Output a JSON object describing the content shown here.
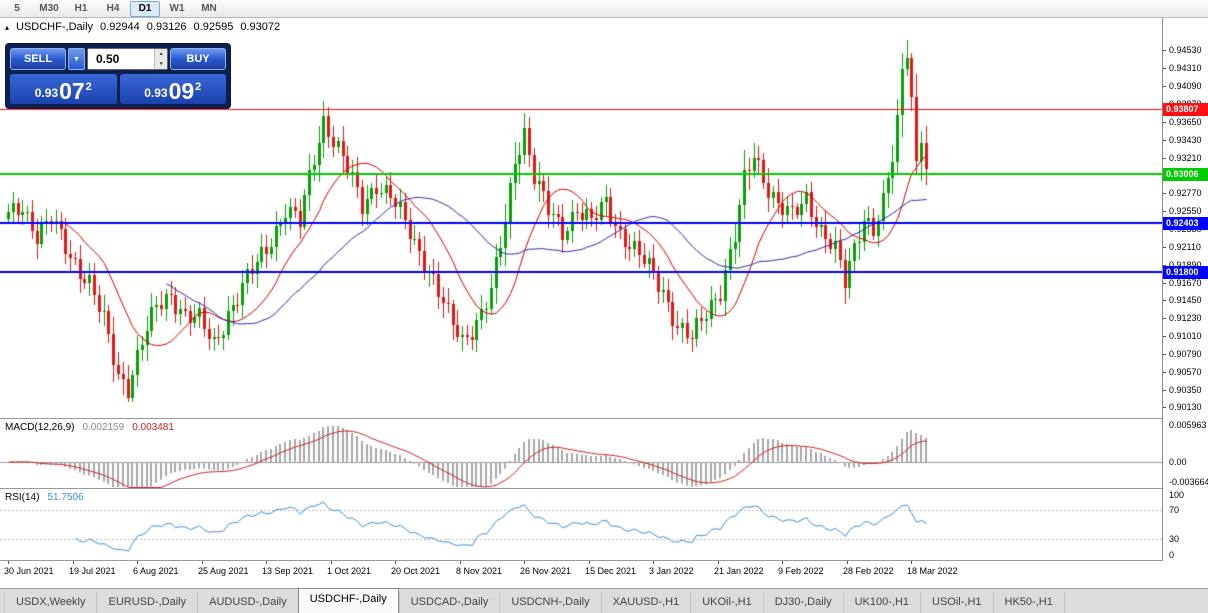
{
  "toolbar": {
    "timeframes": [
      "5",
      "M30",
      "H1",
      "H4",
      "D1",
      "W1",
      "MN"
    ],
    "active_timeframe": "D1"
  },
  "chart": {
    "collapse_icon": "▴",
    "title": "USDCHF-,Daily",
    "ohlc": {
      "open": "0.92944",
      "high": "0.93126",
      "low": "0.92595",
      "close": "0.93072"
    }
  },
  "trade": {
    "sell_label": "SELL",
    "buy_label": "BUY",
    "dropdown_icon": "▼",
    "spin_up_icon": "▲",
    "spin_down_icon": "▼",
    "lot_size": "0.50",
    "sell_price": {
      "major": "0.93",
      "pips": "07",
      "pipette": "2"
    },
    "buy_price": {
      "major": "0.93",
      "pips": "09",
      "pipette": "2"
    }
  },
  "chart_data": {
    "type": "candlestick",
    "symbol": "USDCHF-,Daily",
    "price_axis": {
      "min": 0.9,
      "max": 0.9493,
      "ticks": [
        "0.94530",
        "0.94310",
        "0.94090",
        "0.93870",
        "0.93650",
        "0.93430",
        "0.93210",
        "0.92990",
        "0.92770",
        "0.92550",
        "0.92330",
        "0.92110",
        "0.91890",
        "0.91670",
        "0.91450",
        "0.91230",
        "0.91010",
        "0.90790",
        "0.90570",
        "0.90350",
        "0.90130"
      ]
    },
    "horizontal_lines": [
      {
        "price": 0.93807,
        "label": "0.93807",
        "color": "#ff1010",
        "width": 1
      },
      {
        "price": 0.93006,
        "label": "0.93006",
        "color": "#00cc00",
        "width": 2
      },
      {
        "price": 0.92403,
        "label": "0.92403",
        "color": "#0000ff",
        "width": 2
      },
      {
        "price": 0.918,
        "label": "0.91800",
        "color": "#0000ff",
        "width": 2
      }
    ],
    "candles": {
      "count": 193,
      "bull_color": "#0a9e0a",
      "bear_color": "#e01818",
      "close_anchors": [
        [
          0,
          0.9248
        ],
        [
          3,
          0.9262
        ],
        [
          6,
          0.9226
        ],
        [
          9,
          0.9243
        ],
        [
          13,
          0.92
        ],
        [
          17,
          0.9168
        ],
        [
          20,
          0.9118
        ],
        [
          23,
          0.9052
        ],
        [
          25,
          0.904
        ],
        [
          28,
          0.9095
        ],
        [
          31,
          0.9135
        ],
        [
          34,
          0.9152
        ],
        [
          37,
          0.9128
        ],
        [
          40,
          0.912
        ],
        [
          43,
          0.909
        ],
        [
          46,
          0.913
        ],
        [
          50,
          0.917
        ],
        [
          54,
          0.921
        ],
        [
          58,
          0.9257
        ],
        [
          61,
          0.924
        ],
        [
          64,
          0.9322
        ],
        [
          66,
          0.9368
        ],
        [
          68,
          0.9344
        ],
        [
          71,
          0.9306
        ],
        [
          74,
          0.9262
        ],
        [
          77,
          0.929
        ],
        [
          80,
          0.9272
        ],
        [
          83,
          0.924
        ],
        [
          86,
          0.9206
        ],
        [
          89,
          0.917
        ],
        [
          92,
          0.9124
        ],
        [
          95,
          0.9095
        ],
        [
          98,
          0.912
        ],
        [
          101,
          0.9155
        ],
        [
          104,
          0.924
        ],
        [
          106,
          0.932
        ],
        [
          108,
          0.9354
        ],
        [
          110,
          0.9298
        ],
        [
          113,
          0.9254
        ],
        [
          116,
          0.923
        ],
        [
          119,
          0.926
        ],
        [
          122,
          0.924
        ],
        [
          125,
          0.9264
        ],
        [
          128,
          0.923
        ],
        [
          131,
          0.9207
        ],
        [
          134,
          0.9184
        ],
        [
          137,
          0.9157
        ],
        [
          140,
          0.9114
        ],
        [
          143,
          0.9096
        ],
        [
          146,
          0.913
        ],
        [
          149,
          0.916
        ],
        [
          152,
          0.9224
        ],
        [
          154,
          0.929
        ],
        [
          156,
          0.9324
        ],
        [
          158,
          0.9297
        ],
        [
          161,
          0.9264
        ],
        [
          164,
          0.9247
        ],
        [
          167,
          0.927
        ],
        [
          170,
          0.9234
        ],
        [
          173,
          0.9207
        ],
        [
          175,
          0.9164
        ],
        [
          177,
          0.9208
        ],
        [
          179,
          0.925
        ],
        [
          181,
          0.9234
        ],
        [
          183,
          0.9264
        ],
        [
          185,
          0.9318
        ],
        [
          186,
          0.9362
        ],
        [
          187,
          0.9426
        ],
        [
          188,
          0.9456
        ],
        [
          189,
          0.9398
        ],
        [
          190,
          0.9315
        ],
        [
          191,
          0.9352
        ],
        [
          192,
          0.93072
        ]
      ]
    },
    "moving_averages": [
      {
        "period": 13,
        "color": "#d40000"
      },
      {
        "period": 34,
        "color": "#2a2ab0"
      }
    ],
    "x_axis": {
      "labels": [
        "30 Jun 2021",
        "19 Jul 2021",
        "6 Aug 2021",
        "25 Aug 2021",
        "13 Sep 2021",
        "1 Oct 2021",
        "20 Oct 2021",
        "8 Nov 2021",
        "26 Nov 2021",
        "15 Dec 2021",
        "3 Jan 2022",
        "21 Jan 2022",
        "9 Feb 2022",
        "28 Feb 2022",
        "18 Mar 2022"
      ],
      "label_candle_indices": [
        0,
        13.5,
        27,
        40.5,
        54,
        67.5,
        81,
        94.5,
        108,
        121.5,
        135,
        148.5,
        162,
        175.5,
        189
      ]
    },
    "macd": {
      "label": "MACD(12,26,9)",
      "value_main": "0.002159",
      "value_signal": "0.003481",
      "axis_max": "0.005963",
      "axis_zero": "0.00",
      "axis_min": "-0.003664",
      "range": [
        -0.0037,
        0.006
      ],
      "params": [
        12,
        26,
        9
      ],
      "histogram_color": "#a8a8a8",
      "signal_color": "#cc2222"
    },
    "rsi": {
      "label": "RSI(14)",
      "value": "51.7506",
      "period": 14,
      "axis": [
        "100",
        "70",
        "30",
        "0"
      ],
      "levels": [
        70,
        30
      ],
      "line_color": "#3f8fd2"
    }
  },
  "tabs": [
    "USDX,Weekly",
    "EURUSD-,Daily",
    "AUDUSD-,Daily",
    "USDCHF-,Daily",
    "USDCAD-,Daily",
    "USDCNH-,Daily",
    "XAUUSD-,H1",
    "UKOil-,H1",
    "DJ30-,Daily",
    "UK100-,H1",
    "USOil-,H1",
    "HK50-,H1"
  ],
  "active_tab": "USDCHF-,Daily"
}
